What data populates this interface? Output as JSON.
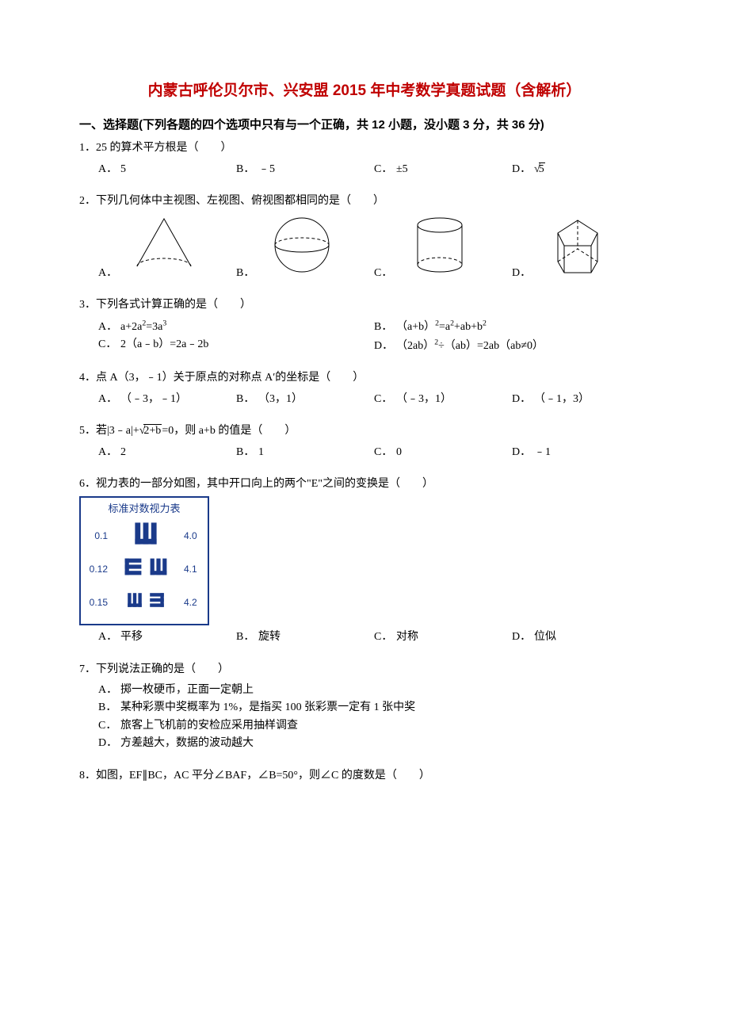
{
  "title": {
    "text": "内蒙古呼伦贝尔市、兴安盟 2015 年中考数学真题试题（含解析）",
    "color": "#c00000",
    "fontsize": 19
  },
  "sectionHead": "一、选择题(下列各题的四个选项中只有与一个正确，共 12 小题，没小题 3 分，共 36 分)",
  "blank": "（　　）",
  "q1": {
    "stem_pre": "1．25 的算术平方根是",
    "opts": {
      "A": "5",
      "B": "﹣5",
      "C": "±5",
      "D_rad": "5"
    }
  },
  "q2": {
    "stem_pre": "2．下列几何体中主视图、左视图、俯视图都相同的是",
    "shapes": {
      "stroke": "#000000",
      "dash": "4,3",
      "w": 90,
      "h": 78
    }
  },
  "q3": {
    "stem_pre": "3．下列各式计算正确的是",
    "opts": {
      "A": "a+2a²=3a³",
      "B": "（a+b）²=a²+ab+b²",
      "C": "2（a﹣b）=2a﹣2b",
      "D": "（2ab）²÷（ab）=2ab（ab≠0）"
    }
  },
  "q4": {
    "stem_pre": "4．点 A（3，﹣1）关于原点的对称点 A′的坐标是",
    "opts": {
      "A": "（﹣3，﹣1）",
      "B": "（3，1）",
      "C": "（﹣3，1）",
      "D": "（﹣1，3）"
    }
  },
  "q5": {
    "stem_pre": "5．若|3﹣a|+",
    "stem_rad": "2+b",
    "stem_post": "=0，则 a+b 的值是",
    "opts": {
      "A": "2",
      "B": "1",
      "C": "0",
      "D": "﹣1"
    }
  },
  "q6": {
    "stem_pre": "6．视力表的一部分如图，其中开口向上的两个\"E\"之间的变换是",
    "opts": {
      "A": "平移",
      "B": "旋转",
      "C": "对称",
      "D": "位似"
    },
    "chart": {
      "title": "标准对数视力表",
      "border_color": "#1a3a8a",
      "text_color": "#1a3a8a",
      "rows": [
        {
          "left": "0.1",
          "right": "4.0",
          "symbols": [
            {
              "rot": 270,
              "size": 34
            }
          ]
        },
        {
          "left": "0.12",
          "right": "4.1",
          "symbols": [
            {
              "rot": 0,
              "size": 26
            },
            {
              "rot": 270,
              "size": 26
            }
          ]
        },
        {
          "left": "0.15",
          "right": "4.2",
          "symbols": [
            {
              "rot": 270,
              "size": 22
            },
            {
              "rot": 180,
              "size": 22
            }
          ]
        }
      ]
    }
  },
  "q7": {
    "stem_pre": "7．下列说法正确的是",
    "opts": {
      "A": "掷一枚硬币，正面一定朝上",
      "B": "某种彩票中奖概率为 1%，是指买 100 张彩票一定有 1 张中奖",
      "C": "旅客上飞机前的安检应采用抽样调查",
      "D": "方差越大，数据的波动越大"
    }
  },
  "q8": {
    "stem_pre": "8．如图，EF∥BC，AC 平分∠BAF，∠B=50°，则∠C 的度数是"
  },
  "labels": {
    "A": "A．",
    "B": "B．",
    "C": "C．",
    "D": "D．"
  }
}
